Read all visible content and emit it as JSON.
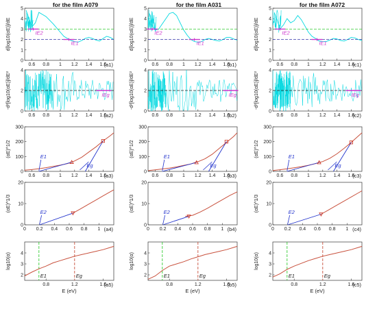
{
  "figure": {
    "columns": [
      {
        "title": "for the film A079"
      },
      {
        "title": "for the film A031"
      },
      {
        "title": "for the film A072"
      }
    ],
    "row_ylabels": [
      "d[log10(αE)]/dE",
      "-d²[log10(αE)]/dE²",
      "(αE)^1/2",
      "(αE)^1/3",
      "log10(α)"
    ],
    "xlabel": "E (eV)",
    "panel_labels": [
      [
        "(a1)",
        "(a2)",
        "(a3)",
        "(a4)",
        "(a5)"
      ],
      [
        "(b1)",
        "(b2)",
        "(b3)",
        "(b4)",
        "(b5)"
      ],
      [
        "(c1)",
        "(c2)",
        "(c3)",
        "(c4)",
        "(c5)"
      ]
    ],
    "colors": {
      "cyan": "#00d8e0",
      "dashed_green": "#33cc33",
      "dashed_blue": "#3333aa",
      "magenta": "#cc33cc",
      "fit_blue": "#2233cc",
      "curve_red": "#c8503c",
      "marker_red": "#cc3322"
    }
  },
  "chart_data": [
    {
      "row": 1,
      "type": "line",
      "xlim": [
        0.5,
        1.75
      ],
      "ylim": [
        0,
        5
      ],
      "xticks": [
        0.6,
        0.8,
        1,
        1.2,
        1.4,
        1.6
      ],
      "yticks": [
        0,
        1,
        2,
        3,
        4,
        5
      ],
      "hlines": [
        {
          "y": 3,
          "color": "green",
          "style": "dashed"
        },
        {
          "y": 2,
          "color": "blue",
          "style": "dashed"
        }
      ],
      "annotations": [
        "IE2",
        "IE1"
      ],
      "series": [
        {
          "panel": "a1",
          "x": [
            0.52,
            0.56,
            0.6,
            0.65,
            0.7,
            0.75,
            0.8,
            0.9,
            1.0,
            1.05,
            1.1,
            1.15,
            1.2,
            1.25,
            1.3,
            1.35,
            1.4,
            1.45,
            1.5,
            1.55,
            1.6,
            1.65,
            1.7,
            1.75
          ],
          "y": [
            4.8,
            4.0,
            3.2,
            3.6,
            4.6,
            4.4,
            4.2,
            3.5,
            2.7,
            2.3,
            2.1,
            1.9,
            1.8,
            1.75,
            1.9,
            2.1,
            2.2,
            2.1,
            1.95,
            1.85,
            2.1,
            2.3,
            2.2,
            2.0
          ],
          "markers": [
            {
              "x": 0.62,
              "y": 3,
              "label": "IE2"
            },
            {
              "x": 1.12,
              "y": 2,
              "label": "IE1"
            }
          ]
        },
        {
          "panel": "b1",
          "x": [
            0.52,
            0.56,
            0.6,
            0.65,
            0.7,
            0.75,
            0.8,
            0.85,
            0.9,
            0.95,
            1.0,
            1.05,
            1.1,
            1.15,
            1.2,
            1.25,
            1.3,
            1.35,
            1.4,
            1.45,
            1.5,
            1.55,
            1.6,
            1.65,
            1.7,
            1.75
          ],
          "y": [
            4.5,
            3.3,
            2.9,
            3.0,
            3.5,
            4.0,
            4.5,
            4.6,
            4.3,
            3.6,
            2.9,
            2.4,
            2.0,
            1.8,
            1.75,
            1.8,
            2.0,
            2.1,
            2.0,
            1.9,
            1.85,
            2.0,
            2.2,
            2.2,
            2.05,
            1.95
          ],
          "markers": [
            {
              "x": 0.56,
              "y": 3,
              "label": "IE2"
            },
            {
              "x": 1.15,
              "y": 2,
              "label": "IE1"
            }
          ]
        },
        {
          "panel": "c1",
          "x": [
            0.52,
            0.56,
            0.6,
            0.65,
            0.7,
            0.75,
            0.8,
            0.85,
            0.9,
            0.95,
            1.0,
            1.05,
            1.1,
            1.15,
            1.2,
            1.25,
            1.3,
            1.35,
            1.4,
            1.45,
            1.5,
            1.55,
            1.6,
            1.65,
            1.7,
            1.75
          ],
          "y": [
            4.6,
            3.9,
            3.0,
            3.4,
            4.0,
            3.6,
            3.8,
            4.3,
            3.9,
            3.3,
            2.7,
            2.3,
            2.1,
            1.85,
            1.8,
            1.8,
            1.95,
            2.1,
            2.05,
            1.9,
            1.85,
            2.0,
            2.2,
            2.15,
            2.0,
            1.9
          ],
          "markers": [
            {
              "x": 0.6,
              "y": 3,
              "label": "IE2"
            },
            {
              "x": 1.12,
              "y": 2,
              "label": "IE1"
            }
          ]
        }
      ]
    },
    {
      "row": 2,
      "type": "line",
      "xlim": [
        0.5,
        1.75
      ],
      "ylim": [
        0,
        4
      ],
      "xticks": [
        0.6,
        0.8,
        1,
        1.2,
        1.4,
        1.6
      ],
      "yticks": [
        0,
        2,
        4
      ],
      "hlines": [
        {
          "y": 2,
          "color": "black",
          "style": "dashed"
        }
      ],
      "annotations": [
        "IEg"
      ],
      "panels": [
        {
          "panel": "a2",
          "noise_band": [
            0.5,
            0.9
          ],
          "marker": {
            "x": 1.6,
            "y": 2,
            "label": "IEg"
          }
        },
        {
          "panel": "b2",
          "noise_band": [
            0.5,
            0.75
          ],
          "marker": {
            "x": 1.65,
            "y": 2,
            "label": "IEg"
          }
        },
        {
          "panel": "c2",
          "noise_band": [
            0.5,
            0.75
          ],
          "marker": {
            "x": 1.62,
            "y": 2,
            "label": "IEg"
          }
        }
      ]
    },
    {
      "row": 3,
      "type": "line",
      "xlim": [
        0.5,
        1.75
      ],
      "ylim": [
        0,
        300
      ],
      "xticks": [
        0.6,
        0.8,
        1,
        1.2,
        1.4,
        1.6
      ],
      "yticks": [
        0,
        100,
        200,
        300
      ],
      "annotations": [
        "E1",
        "Eg"
      ],
      "series": [
        {
          "panel": "a3",
          "x": [
            0.5,
            0.6,
            0.7,
            0.8,
            0.9,
            1.0,
            1.1,
            1.15,
            1.2,
            1.3,
            1.4,
            1.5,
            1.6,
            1.7,
            1.75
          ],
          "y": [
            8,
            12,
            18,
            25,
            33,
            42,
            52,
            60,
            70,
            95,
            130,
            165,
            205,
            240,
            260
          ],
          "triangle": {
            "x": 1.16,
            "y": 62
          },
          "square": {
            "x": 1.6,
            "y": 205
          }
        },
        {
          "panel": "b3",
          "x": [
            0.5,
            0.6,
            0.7,
            0.8,
            0.9,
            1.0,
            1.1,
            1.15,
            1.2,
            1.3,
            1.4,
            1.5,
            1.6,
            1.7,
            1.75
          ],
          "y": [
            5,
            10,
            16,
            22,
            30,
            40,
            50,
            58,
            65,
            85,
            115,
            155,
            195,
            235,
            260
          ],
          "triangle": {
            "x": 1.18,
            "y": 60
          },
          "square": {
            "x": 1.6,
            "y": 200
          }
        },
        {
          "panel": "c3",
          "x": [
            0.5,
            0.6,
            0.7,
            0.8,
            0.9,
            1.0,
            1.1,
            1.15,
            1.2,
            1.3,
            1.4,
            1.5,
            1.6,
            1.7,
            1.75
          ],
          "y": [
            6,
            11,
            17,
            24,
            32,
            41,
            52,
            60,
            66,
            88,
            118,
            155,
            195,
            238,
            260
          ],
          "triangle": {
            "x": 1.15,
            "y": 60
          },
          "square": {
            "x": 1.6,
            "y": 195
          }
        }
      ]
    },
    {
      "row": 4,
      "type": "line",
      "xlim": [
        0,
        1.2
      ],
      "ylim": [
        0,
        20
      ],
      "xticks": [
        0,
        0.2,
        0.4,
        0.6,
        0.8,
        1
      ],
      "yticks": [
        0,
        10,
        20
      ],
      "annotations": [
        "E2"
      ],
      "series": [
        {
          "panel": "a4",
          "x": [
            0.65,
            0.75,
            0.85,
            0.95,
            1.05,
            1.15,
            1.2
          ],
          "y": [
            5.5,
            7.5,
            9.5,
            11.5,
            13.5,
            15.5,
            16.5
          ],
          "triangle": {
            "x": 0.65,
            "y": 5.5
          }
        },
        {
          "panel": "b4",
          "x": [
            0.5,
            0.6,
            0.7,
            0.8,
            0.9,
            1.0,
            1.1,
            1.2
          ],
          "y": [
            4,
            4.5,
            6,
            7.8,
            9.8,
            11.8,
            13.8,
            15.5
          ],
          "triangle": {
            "x": 0.55,
            "y": 4
          }
        },
        {
          "panel": "c4",
          "x": [
            0.65,
            0.75,
            0.85,
            0.95,
            1.05,
            1.15,
            1.2
          ],
          "y": [
            5,
            7,
            9,
            11,
            13,
            15,
            16
          ],
          "triangle": {
            "x": 0.65,
            "y": 5
          }
        }
      ]
    },
    {
      "row": 5,
      "type": "line",
      "xlim": [
        0.5,
        1.75
      ],
      "ylim": [
        1.5,
        5
      ],
      "xticks": [
        0.8,
        1.2,
        1.6
      ],
      "yticks": [
        2,
        3,
        4
      ],
      "annotations": [
        "E1",
        "Eg"
      ],
      "vlines": [
        {
          "x": 0.7,
          "color": "green",
          "style": "dashed"
        },
        {
          "x": 1.2,
          "color": "red",
          "style": "dashed"
        }
      ],
      "series": [
        {
          "panel": "a5",
          "x": [
            0.5,
            0.6,
            0.7,
            0.8,
            0.9,
            1.0,
            1.1,
            1.2,
            1.3,
            1.4,
            1.5,
            1.6,
            1.7,
            1.75
          ],
          "y": [
            1.9,
            2.25,
            2.55,
            2.8,
            3.1,
            3.3,
            3.5,
            3.7,
            3.85,
            4.0,
            4.15,
            4.3,
            4.5,
            4.6
          ]
        },
        {
          "panel": "b5",
          "x": [
            0.5,
            0.6,
            0.7,
            0.8,
            0.9,
            1.0,
            1.1,
            1.2,
            1.3,
            1.4,
            1.5,
            1.6,
            1.7,
            1.75
          ],
          "y": [
            1.6,
            1.9,
            2.4,
            2.8,
            3.0,
            3.2,
            3.45,
            3.65,
            3.85,
            4.0,
            4.15,
            4.3,
            4.5,
            4.6
          ]
        },
        {
          "panel": "c5",
          "x": [
            0.5,
            0.6,
            0.7,
            0.8,
            0.9,
            1.0,
            1.1,
            1.2,
            1.3,
            1.4,
            1.5,
            1.6,
            1.7,
            1.75
          ],
          "y": [
            1.8,
            2.1,
            2.5,
            2.8,
            3.05,
            3.3,
            3.5,
            3.7,
            3.85,
            4.0,
            4.15,
            4.3,
            4.5,
            4.6
          ]
        }
      ]
    }
  ]
}
